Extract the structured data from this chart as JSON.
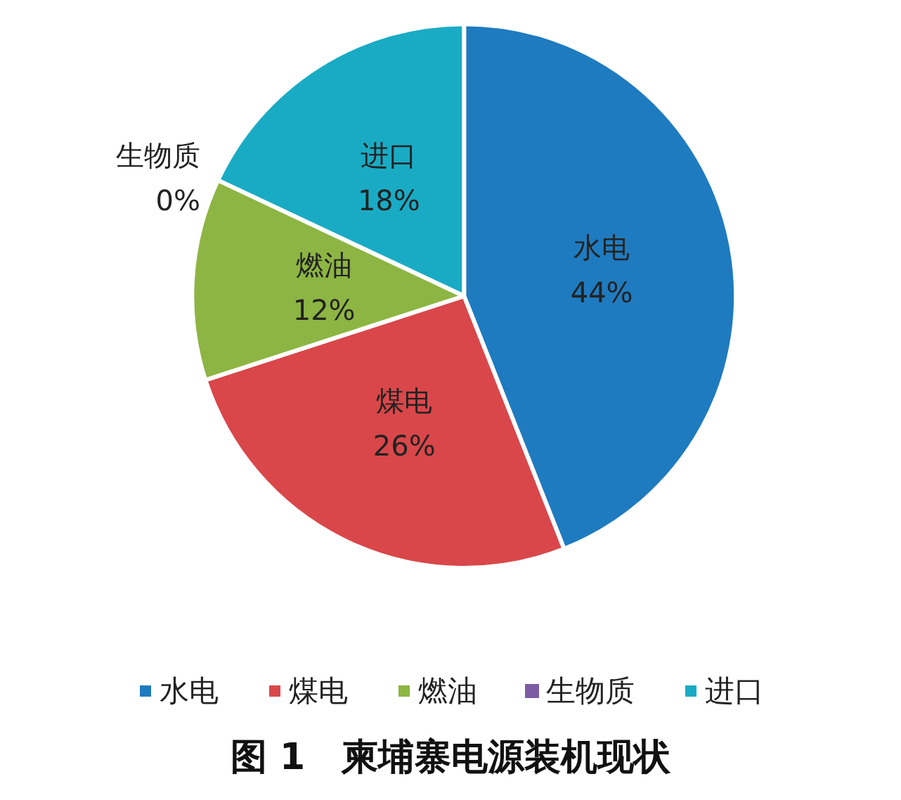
{
  "chart_data": {
    "type": "pie",
    "title": "图 1　柬埔寨电源装机现状",
    "categories": [
      "水电",
      "煤电",
      "燃油",
      "生物质",
      "进口"
    ],
    "values": [
      44,
      26,
      12,
      0,
      18
    ],
    "value_labels": [
      "44%",
      "26%",
      "12%",
      "0%",
      "18%"
    ],
    "colors": [
      "#1f7bbf",
      "#d9474a",
      "#8db543",
      "#7e5ca3",
      "#1aabc4"
    ],
    "legend": "bottom"
  }
}
